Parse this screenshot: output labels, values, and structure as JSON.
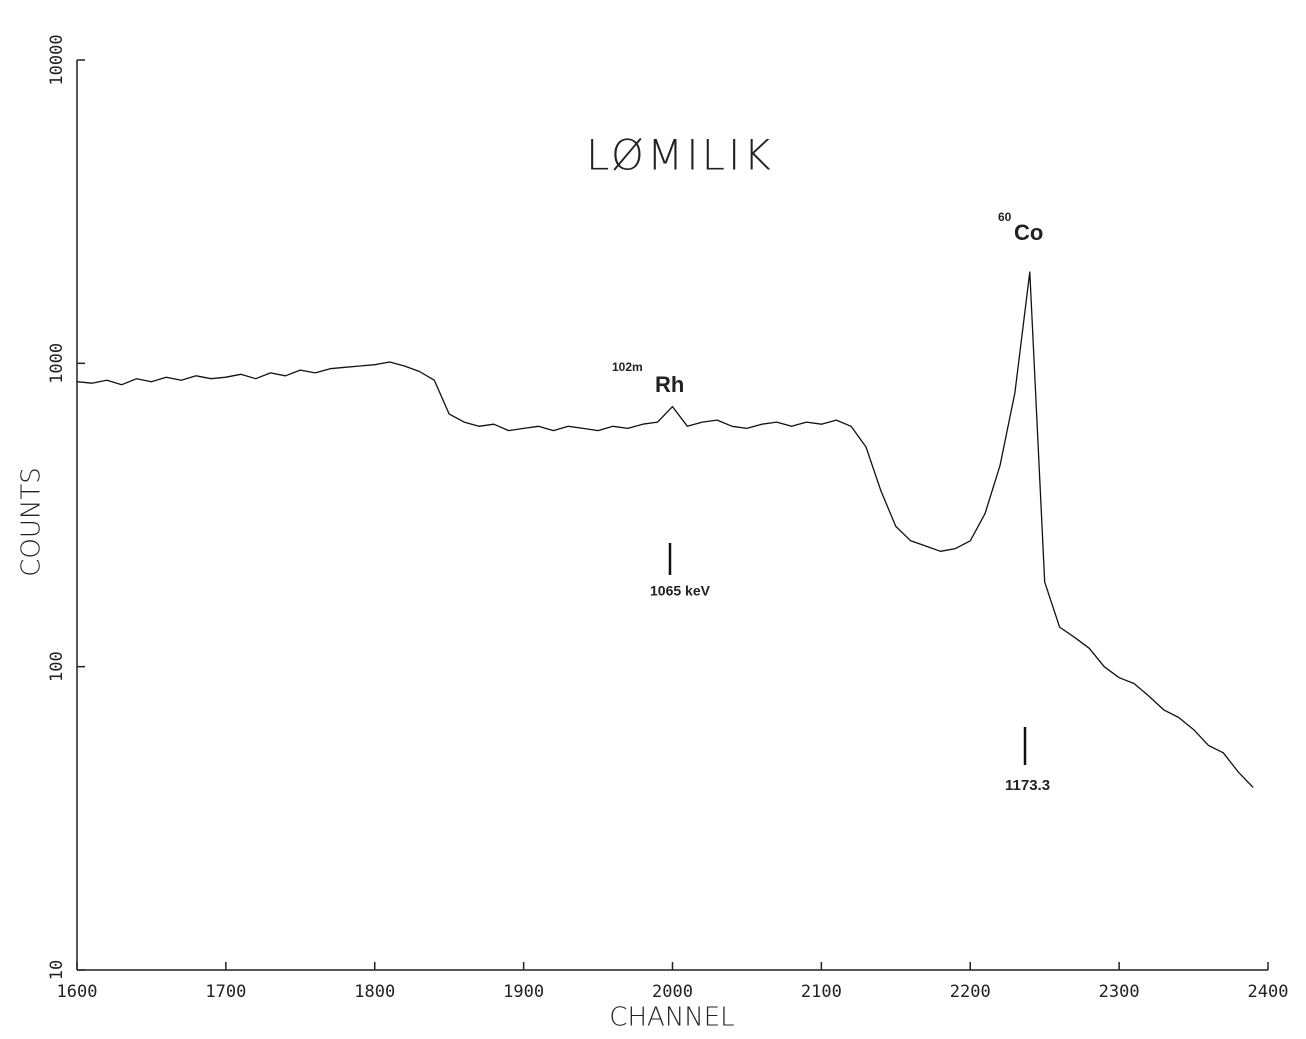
{
  "chart_data": {
    "type": "line",
    "title": "LØMILIK",
    "x_label": "CHANNEL",
    "y_label": "COUNTS",
    "yscale": "log",
    "color": "#111111",
    "xlim": [
      1600,
      2400
    ],
    "xticks": [
      1600,
      1700,
      1800,
      1900,
      2000,
      2100,
      2200,
      2300,
      2400
    ],
    "ylim": [
      10,
      10000
    ],
    "yticks": [
      10,
      100,
      1000,
      10000
    ],
    "x": [
      1600,
      1610,
      1620,
      1630,
      1640,
      1650,
      1660,
      1670,
      1680,
      1690,
      1700,
      1710,
      1720,
      1730,
      1740,
      1750,
      1760,
      1770,
      1780,
      1790,
      1800,
      1810,
      1820,
      1830,
      1840,
      1850,
      1860,
      1870,
      1880,
      1890,
      1900,
      1910,
      1920,
      1930,
      1940,
      1950,
      1960,
      1970,
      1980,
      1990,
      2000,
      2010,
      2020,
      2030,
      2040,
      2050,
      2060,
      2070,
      2080,
      2090,
      2100,
      2110,
      2120,
      2130,
      2140,
      2150,
      2160,
      2170,
      2180,
      2190,
      2200,
      2210,
      2220,
      2230,
      2240,
      2250,
      2260,
      2270,
      2280,
      2290,
      2300,
      2310,
      2320,
      2330,
      2340,
      2350,
      2360,
      2370,
      2380,
      2390
    ],
    "values": [
      870,
      860,
      880,
      850,
      890,
      870,
      900,
      880,
      910,
      890,
      900,
      920,
      890,
      930,
      910,
      950,
      930,
      960,
      970,
      980,
      990,
      1010,
      980,
      940,
      880,
      680,
      640,
      620,
      630,
      600,
      610,
      620,
      600,
      620,
      610,
      600,
      620,
      610,
      630,
      640,
      720,
      620,
      640,
      650,
      620,
      610,
      630,
      640,
      620,
      640,
      630,
      650,
      620,
      530,
      380,
      290,
      260,
      250,
      240,
      245,
      260,
      320,
      460,
      800,
      2000,
      190,
      135,
      125,
      115,
      100,
      92,
      88,
      80,
      72,
      68,
      62,
      55,
      52,
      45,
      40
    ],
    "annotations": [
      {
        "sup": "60",
        "text": "Co"
      },
      {
        "sup": "102m",
        "text": "Rh"
      },
      {
        "text": "1065 keV"
      },
      {
        "text": "1173.3"
      }
    ]
  }
}
